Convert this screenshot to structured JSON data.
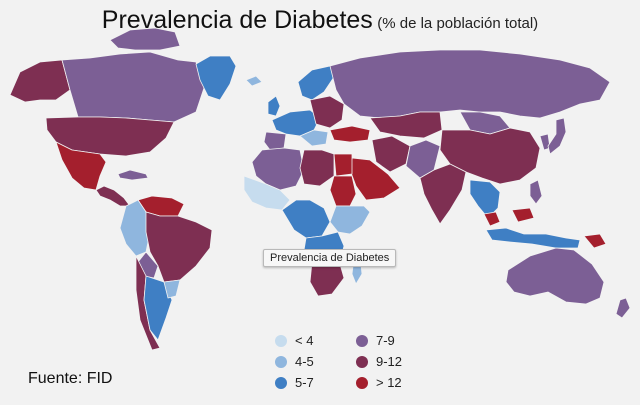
{
  "title": {
    "main": "Prevalencia de Diabetes",
    "sub": "(% de la población total)"
  },
  "tooltip": "Prevalencia de Diabetes",
  "source": "Fuente: FID",
  "colors": {
    "lt4": "#c6dcee",
    "r4_5": "#8fb6de",
    "r5_7": "#3f7fc4",
    "r7_9": "#7c5f95",
    "r9_12": "#7e2f52",
    "gt12": "#a41f2d",
    "border": "#f2f2f2"
  },
  "legend": [
    {
      "label": "< 4",
      "color": "#c6dcee"
    },
    {
      "label": "4-5",
      "color": "#8fb6de"
    },
    {
      "label": "5-7",
      "color": "#3f7fc4"
    },
    {
      "label": "7-9",
      "color": "#7c5f95"
    },
    {
      "label": "9-12",
      "color": "#7e2f52"
    },
    {
      "label": "> 12",
      "color": "#a41f2d"
    }
  ]
}
